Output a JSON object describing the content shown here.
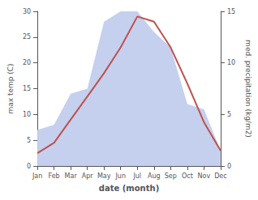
{
  "chart_data": {
    "type": "line",
    "categories": [
      "Jan",
      "Feb",
      "Mar",
      "Apr",
      "May",
      "Jun",
      "Jul",
      "Aug",
      "Sep",
      "Oct",
      "Nov",
      "Dec"
    ],
    "series": [
      {
        "type": "area",
        "axis": "y2",
        "color": "#c5d0ee",
        "values": [
          3.5,
          4.0,
          7.0,
          7.5,
          14.0,
          15.0,
          15.0,
          13.0,
          11.5,
          6.0,
          5.5,
          1.5
        ]
      },
      {
        "type": "line",
        "color": "#c0504d",
        "values": [
          2.5,
          4.5,
          9.0,
          13.5,
          18.0,
          23.0,
          29.0,
          28.0,
          23.0,
          16.0,
          8.5,
          3.0
        ]
      }
    ],
    "xlabel": "date (month)",
    "ylabel": "max temp (C)",
    "y2label": "med. precipitation (kg/m2)",
    "ylim": [
      0,
      30
    ],
    "yticks": [
      0,
      5,
      10,
      15,
      20,
      25,
      30
    ],
    "y2lim": [
      0,
      15
    ],
    "y2ticks": [
      0,
      5,
      10,
      15
    ],
    "grid": false
  }
}
